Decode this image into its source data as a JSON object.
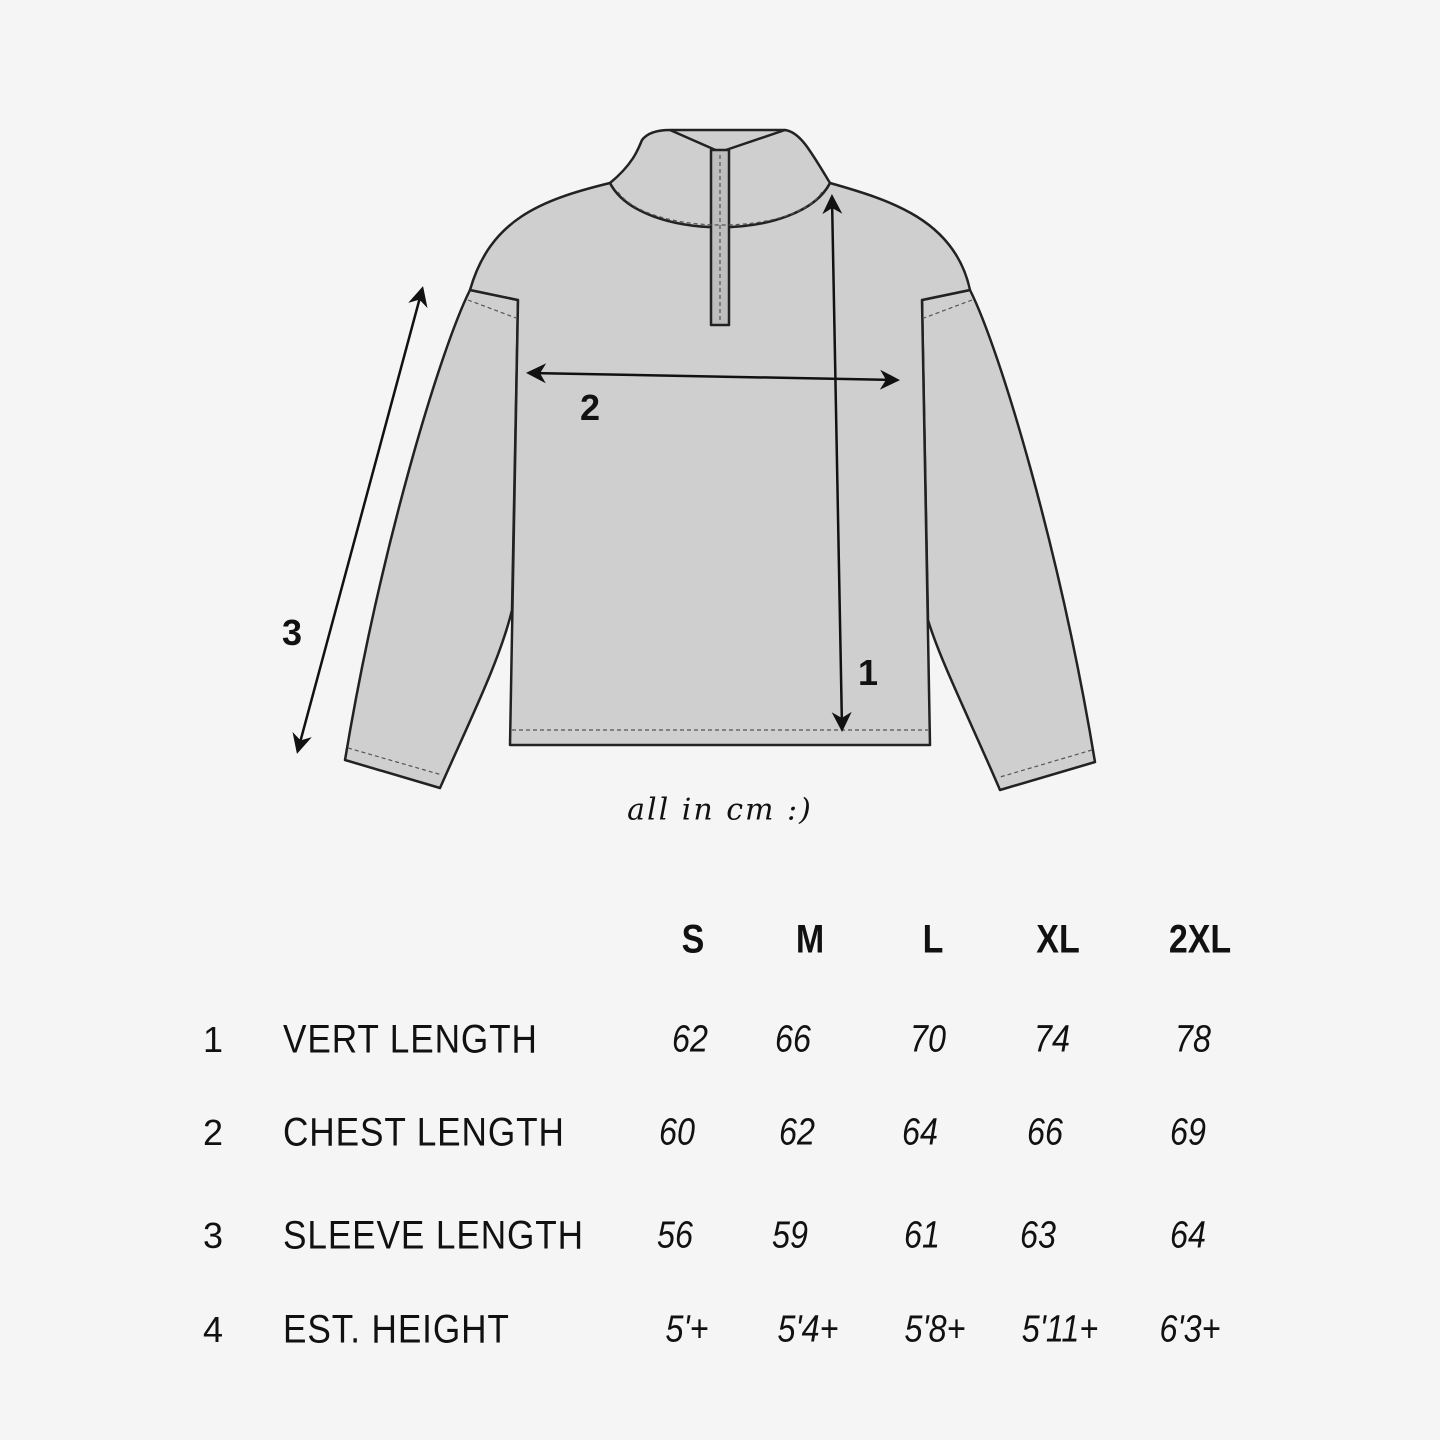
{
  "diagram": {
    "measure_labels": [
      "1",
      "2",
      "3"
    ],
    "note": "all in cm :)",
    "colors": {
      "garment": "#cfcfcf",
      "outline": "#222222",
      "background": "#f5f5f5"
    }
  },
  "size_table": {
    "sizes": [
      "S",
      "M",
      "L",
      "XL",
      "2XL"
    ],
    "rows": [
      {
        "num": "1",
        "label": "VERT LENGTH",
        "values": [
          "62",
          "66",
          "70",
          "74",
          "78"
        ]
      },
      {
        "num": "2",
        "label": "CHEST LENGTH",
        "values": [
          "60",
          "62",
          "64",
          "66",
          "69"
        ]
      },
      {
        "num": "3",
        "label": "SLEEVE LENGTH",
        "values": [
          "56",
          "59",
          "61",
          "63",
          "64"
        ]
      },
      {
        "num": "4",
        "label": "EST. HEIGHT",
        "values": [
          "5'+",
          "5'4+",
          "5'8+",
          "5'11+",
          "6'3+"
        ]
      }
    ]
  }
}
